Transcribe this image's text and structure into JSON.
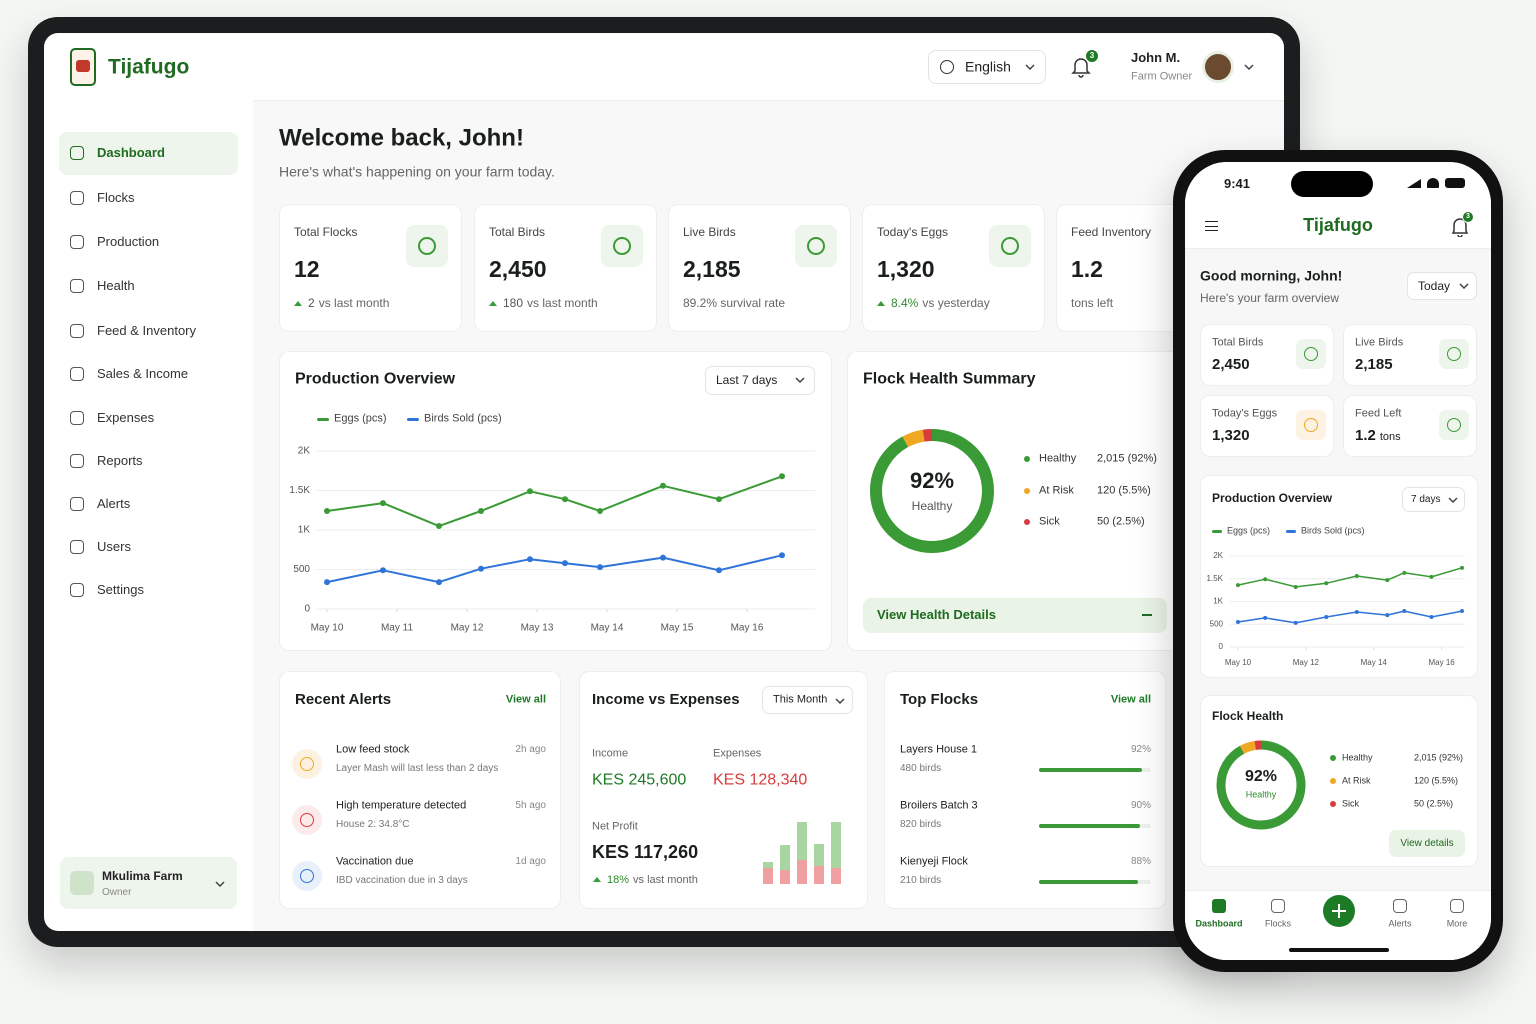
{
  "tablet": {
    "brand": "Tijafugo",
    "language": "English",
    "notification_count": "3",
    "user": {
      "name": "John M.",
      "role": "Farm Owner"
    },
    "nav": [
      "Dashboard",
      "Flocks",
      "Production",
      "Health",
      "Feed & Inventory",
      "Sales & Income",
      "Expenses",
      "Reports",
      "Alerts",
      "Users",
      "Settings"
    ],
    "farm": {
      "name": "Mkulima Farm",
      "role": "Owner"
    },
    "welcome": {
      "title": "Welcome back, John!",
      "subtitle": "Here's what's happening on your farm today."
    },
    "stats": [
      {
        "label": "Total Flocks",
        "value": "12",
        "trend": "2",
        "note": "vs last month"
      },
      {
        "label": "Total Birds",
        "value": "2,450",
        "trend": "180",
        "note": "vs last month"
      },
      {
        "label": "Live Birds",
        "value": "2,185",
        "note": "89.2% survival rate"
      },
      {
        "label": "Today's Eggs",
        "value": "1,320",
        "trend": "8.4%",
        "note": "vs yesterday"
      },
      {
        "label": "Feed Inventory",
        "value": "1.2",
        "note": "tons left"
      }
    ],
    "production": {
      "type": "line",
      "title": "Production Overview",
      "filter": "Last 7 days",
      "x": [
        0,
        0.8,
        1.6,
        2.2,
        2.9,
        3.4,
        3.9,
        4.8,
        5.6,
        6.5
      ],
      "xlim": [
        0,
        6.5
      ],
      "xticks": [
        {
          "value": 0,
          "label": "May 10"
        },
        {
          "value": 1,
          "label": "May 11"
        },
        {
          "value": 2,
          "label": "May 12"
        },
        {
          "value": 3,
          "label": "May 13"
        },
        {
          "value": 4,
          "label": "May 14"
        },
        {
          "value": 5,
          "label": "May 15"
        },
        {
          "value": 6,
          "label": "May 16"
        }
      ],
      "ylim": [
        0,
        2000
      ],
      "yticks": [
        0,
        500,
        {
          "value": 1000,
          "label": "1K"
        },
        {
          "value": 1500,
          "label": "1.5K"
        },
        {
          "value": 2000,
          "label": "2K"
        }
      ],
      "grid": true,
      "series": [
        {
          "name": "Eggs (pcs)",
          "color": "#3a9a35",
          "values": [
            1240,
            1340,
            1050,
            1240,
            1490,
            1390,
            1240,
            1560,
            1390,
            1680
          ]
        },
        {
          "name": "Birds Sold (pcs)",
          "color": "#2f74d8",
          "values": [
            340,
            490,
            340,
            510,
            630,
            580,
            530,
            650,
            490,
            680
          ]
        }
      ]
    },
    "health": {
      "type": "pie",
      "title": "Flock Health Summary",
      "center_value": "92%",
      "center_label": "Healthy",
      "items": [
        {
          "name": "Healthy",
          "label": "2,015 (92%)",
          "value": 92,
          "color": "#3a9a35"
        },
        {
          "name": "At Risk",
          "label": "120 (5.5%)",
          "value": 5.5,
          "color": "#f0a823"
        },
        {
          "name": "Sick",
          "label": "50 (2.5%)",
          "value": 2.5,
          "color": "#d93c3c"
        }
      ],
      "action": "View Health Details"
    },
    "alerts": {
      "title": "Recent Alerts",
      "action": "View all",
      "items": [
        {
          "title": "Low feed stock",
          "detail": "Layer Mash will last less than 2 days",
          "time": "2h ago"
        },
        {
          "title": "High temperature detected",
          "detail": "House 2: 34.8°C",
          "time": "5h ago"
        },
        {
          "title": "Vaccination due",
          "detail": "IBD vaccination due in 3 days",
          "time": "1d ago"
        }
      ]
    },
    "income": {
      "title": "Income vs Expenses",
      "filter": "This Month",
      "income": {
        "label": "Income",
        "value": "KES 245,600"
      },
      "expenses": {
        "label": "Expenses",
        "value": "KES 128,340"
      },
      "net": {
        "label": "Net Profit",
        "value": "KES 117,260",
        "trend": "18%",
        "note": "vs last month"
      },
      "bars": {
        "income": [
          6,
          25,
          38,
          22,
          46
        ],
        "expenses": [
          16,
          14,
          24,
          18,
          16
        ]
      }
    },
    "top_flocks": {
      "title": "Top Flocks",
      "action": "View all",
      "items": [
        {
          "name": "Layers House 1",
          "birds": "480 birds",
          "value": 92,
          "value_label": "92%"
        },
        {
          "name": "Broilers Batch 3",
          "birds": "820 birds",
          "value": 90,
          "value_label": "90%"
        },
        {
          "name": "Kienyeji Flock",
          "birds": "210 birds",
          "value": 88,
          "value_label": "88%"
        }
      ]
    }
  },
  "phone": {
    "time": "9:41",
    "brand": "Tijafugo",
    "notification_count": "3",
    "greeting": "Good morning, John!",
    "subtitle": "Here's your farm overview",
    "filter": "Today",
    "stats": [
      {
        "label": "Total Birds",
        "value": "2,450"
      },
      {
        "label": "Live Birds",
        "value": "2,185"
      },
      {
        "label": "Today's Eggs",
        "value": "1,320"
      },
      {
        "label": "Feed Left",
        "value": "1.2",
        "unit": "tons"
      }
    ],
    "production": {
      "type": "line",
      "title": "Production Overview",
      "filter": "7 days",
      "x": [
        0,
        0.8,
        1.7,
        2.6,
        3.5,
        4.4,
        4.9,
        5.7,
        6.6
      ],
      "xlim": [
        0,
        6.6
      ],
      "xticks": [
        {
          "value": 0,
          "label": "May 10"
        },
        {
          "value": 2,
          "label": "May 12"
        },
        {
          "value": 4,
          "label": "May 14"
        },
        {
          "value": 6,
          "label": "May 16"
        }
      ],
      "ylim": [
        0,
        2000
      ],
      "yticks": [
        0,
        500,
        {
          "value": 1000,
          "label": "1K"
        },
        {
          "value": 1500,
          "label": "1.5K"
        },
        {
          "value": 2000,
          "label": "2K"
        }
      ],
      "grid": true,
      "series": [
        {
          "name": "Eggs (pcs)",
          "color": "#3a9a35",
          "values": [
            1360,
            1490,
            1320,
            1400,
            1560,
            1470,
            1630,
            1540,
            1740
          ]
        },
        {
          "name": "Birds Sold (pcs)",
          "color": "#2f74d8",
          "values": [
            550,
            640,
            530,
            660,
            770,
            700,
            790,
            660,
            790
          ]
        }
      ]
    },
    "health": {
      "type": "pie",
      "title": "Flock Health",
      "center_value": "92%",
      "center_label": "Healthy",
      "items": [
        {
          "name": "Healthy",
          "label": "2,015 (92%)",
          "value": 92,
          "color": "#3a9a35"
        },
        {
          "name": "At Risk",
          "label": "120 (5.5%)",
          "value": 5.5,
          "color": "#f0a823"
        },
        {
          "name": "Sick",
          "label": "50 (2.5%)",
          "value": 2.5,
          "color": "#d93c3c"
        }
      ],
      "action": "View details"
    },
    "tabs": [
      "Dashboard",
      "Flocks",
      "Alerts",
      "More"
    ]
  }
}
